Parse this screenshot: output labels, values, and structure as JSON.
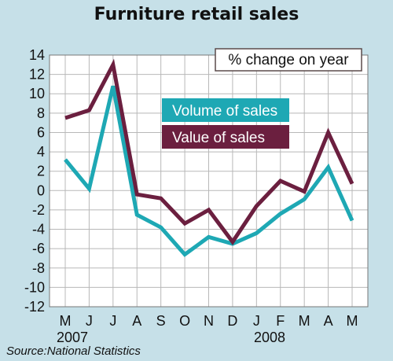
{
  "chart_data": {
    "type": "line",
    "title": "Furniture retail sales",
    "unit_label": "% change on year",
    "source": "Source:National Statistics",
    "categories": [
      "M",
      "J",
      "J",
      "A",
      "S",
      "O",
      "N",
      "D",
      "J",
      "F",
      "M",
      "A",
      "M"
    ],
    "year_labels": [
      "2007",
      "2008"
    ],
    "series": [
      {
        "name": "Volume of sales",
        "color": "#1ea8b4",
        "values": [
          3.2,
          0.2,
          10.8,
          -2.5,
          -3.8,
          -6.6,
          -4.8,
          -5.5,
          -4.4,
          -2.4,
          -0.9,
          2.4,
          -3.1
        ]
      },
      {
        "name": "Value of sales",
        "color": "#6b1f3f",
        "values": [
          7.5,
          8.3,
          13.0,
          -0.4,
          -0.8,
          -3.4,
          -2.0,
          -5.3,
          -1.6,
          1.0,
          -0.1,
          6.0,
          0.7
        ]
      }
    ],
    "yticks": [
      14,
      12,
      10,
      8,
      6,
      4,
      2,
      0,
      -2,
      -4,
      -6,
      -8,
      -10,
      -12
    ],
    "ylim": [
      -12,
      14
    ],
    "grid": true,
    "legend_position": "top-center"
  }
}
